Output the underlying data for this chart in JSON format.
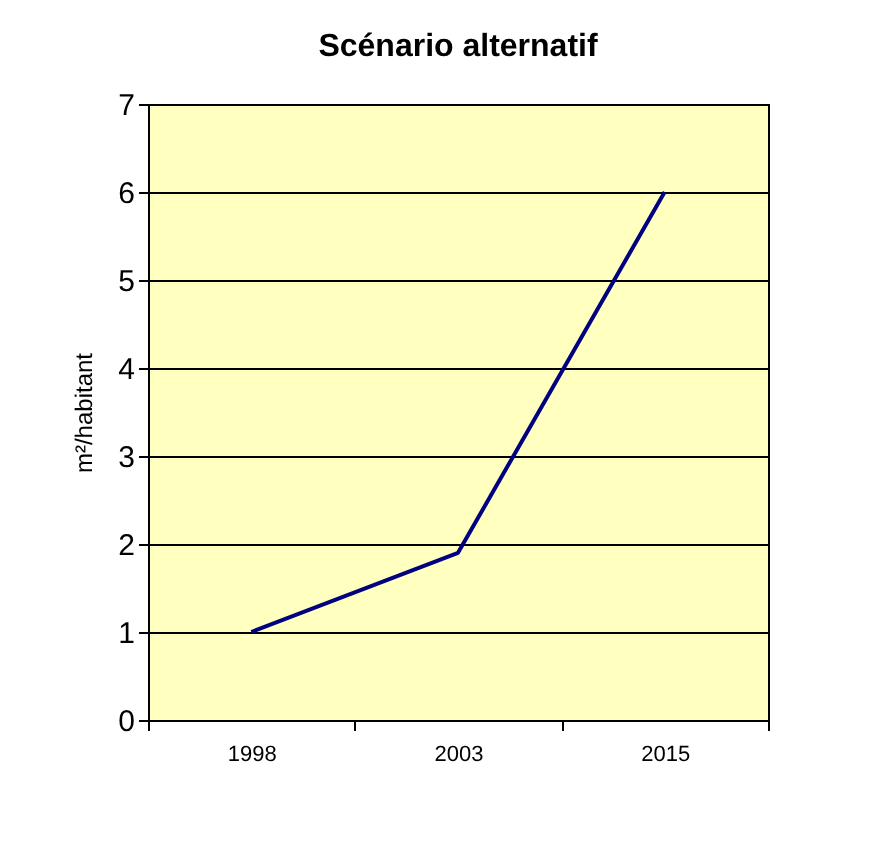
{
  "chart_data": {
    "type": "line",
    "title": "Scénario alternatif",
    "ylabel": "m²/habitant",
    "categories": [
      "1998",
      "2003",
      "2015"
    ],
    "series": [
      {
        "color": "#000080",
        "values": [
          1,
          1.9,
          6
        ]
      }
    ],
    "ylim": [
      0,
      7
    ],
    "yticks": [
      0,
      1,
      2,
      3,
      4,
      5,
      6,
      7
    ],
    "grid": "y",
    "legend": false,
    "marker": "none",
    "line_style": "solid"
  }
}
